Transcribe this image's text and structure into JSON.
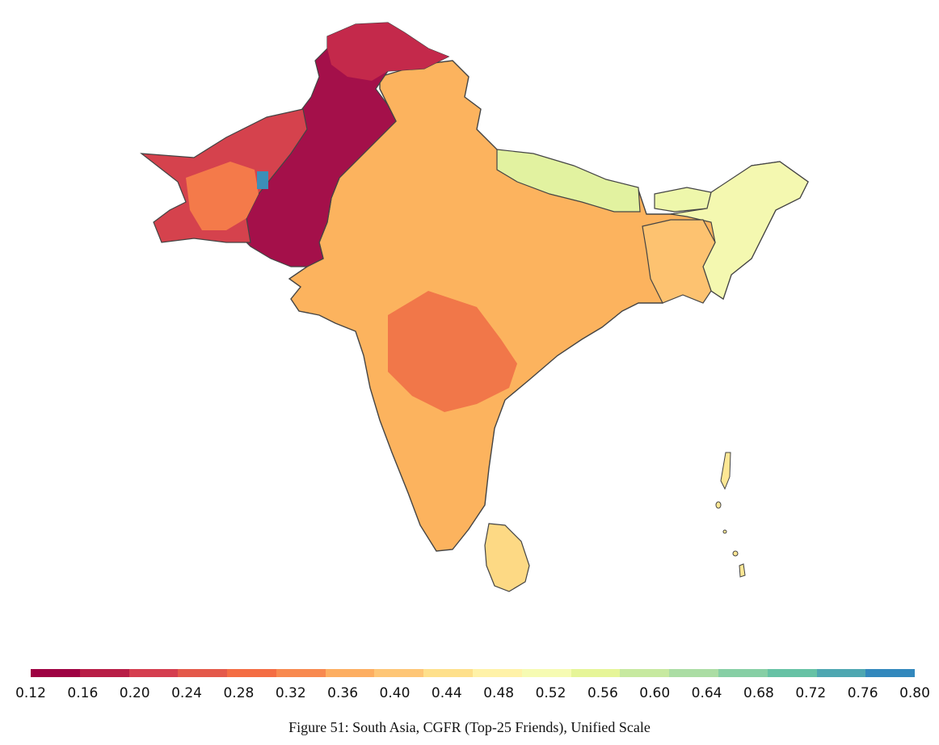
{
  "caption": "Figure 51: South Asia, CGFR (Top-25 Friends), Unified Scale",
  "colorbar": {
    "ticks": [
      "0.12",
      "0.16",
      "0.20",
      "0.24",
      "0.28",
      "0.32",
      "0.36",
      "0.40",
      "0.44",
      "0.48",
      "0.52",
      "0.56",
      "0.60",
      "0.64",
      "0.68",
      "0.72",
      "0.76",
      "0.80"
    ],
    "colors": [
      "#9e0142",
      "#b81d46",
      "#d53e4f",
      "#e4594a",
      "#f46d43",
      "#f8894f",
      "#fdae61",
      "#fec676",
      "#fee08b",
      "#fff2a8",
      "#f6fbb3",
      "#e6f598",
      "#c7e9a0",
      "#abdda4",
      "#86cfa5",
      "#66c2a5",
      "#4ea7b1",
      "#3288bd"
    ]
  },
  "regions": [
    {
      "name": "Pakistan",
      "value": 0.16,
      "color": "#a4104a"
    },
    {
      "name": "Balochistan",
      "value": 0.22,
      "color": "#d5424d"
    },
    {
      "name": "Afghanistan border region",
      "value": 0.3,
      "color": "#f47a4a"
    },
    {
      "name": "Northern Pakistan",
      "value": 0.2,
      "color": "#c4294b"
    },
    {
      "name": "India",
      "value": 0.38,
      "color": "#fcb35e"
    },
    {
      "name": "Central India",
      "value": 0.3,
      "color": "#ee6c45"
    },
    {
      "name": "Nepal",
      "value": 0.56,
      "color": "#e2f2a0"
    },
    {
      "name": "Bhutan",
      "value": 0.54,
      "color": "#eef7ab"
    },
    {
      "name": "Northeast India",
      "value": 0.5,
      "color": "#f4f8b0"
    },
    {
      "name": "Bangladesh",
      "value": 0.4,
      "color": "#fdc270"
    },
    {
      "name": "Sri Lanka",
      "value": 0.44,
      "color": "#fdd984"
    },
    {
      "name": "Andaman and Nicobar Islands",
      "value": 0.46,
      "color": "#fde795"
    }
  ]
}
